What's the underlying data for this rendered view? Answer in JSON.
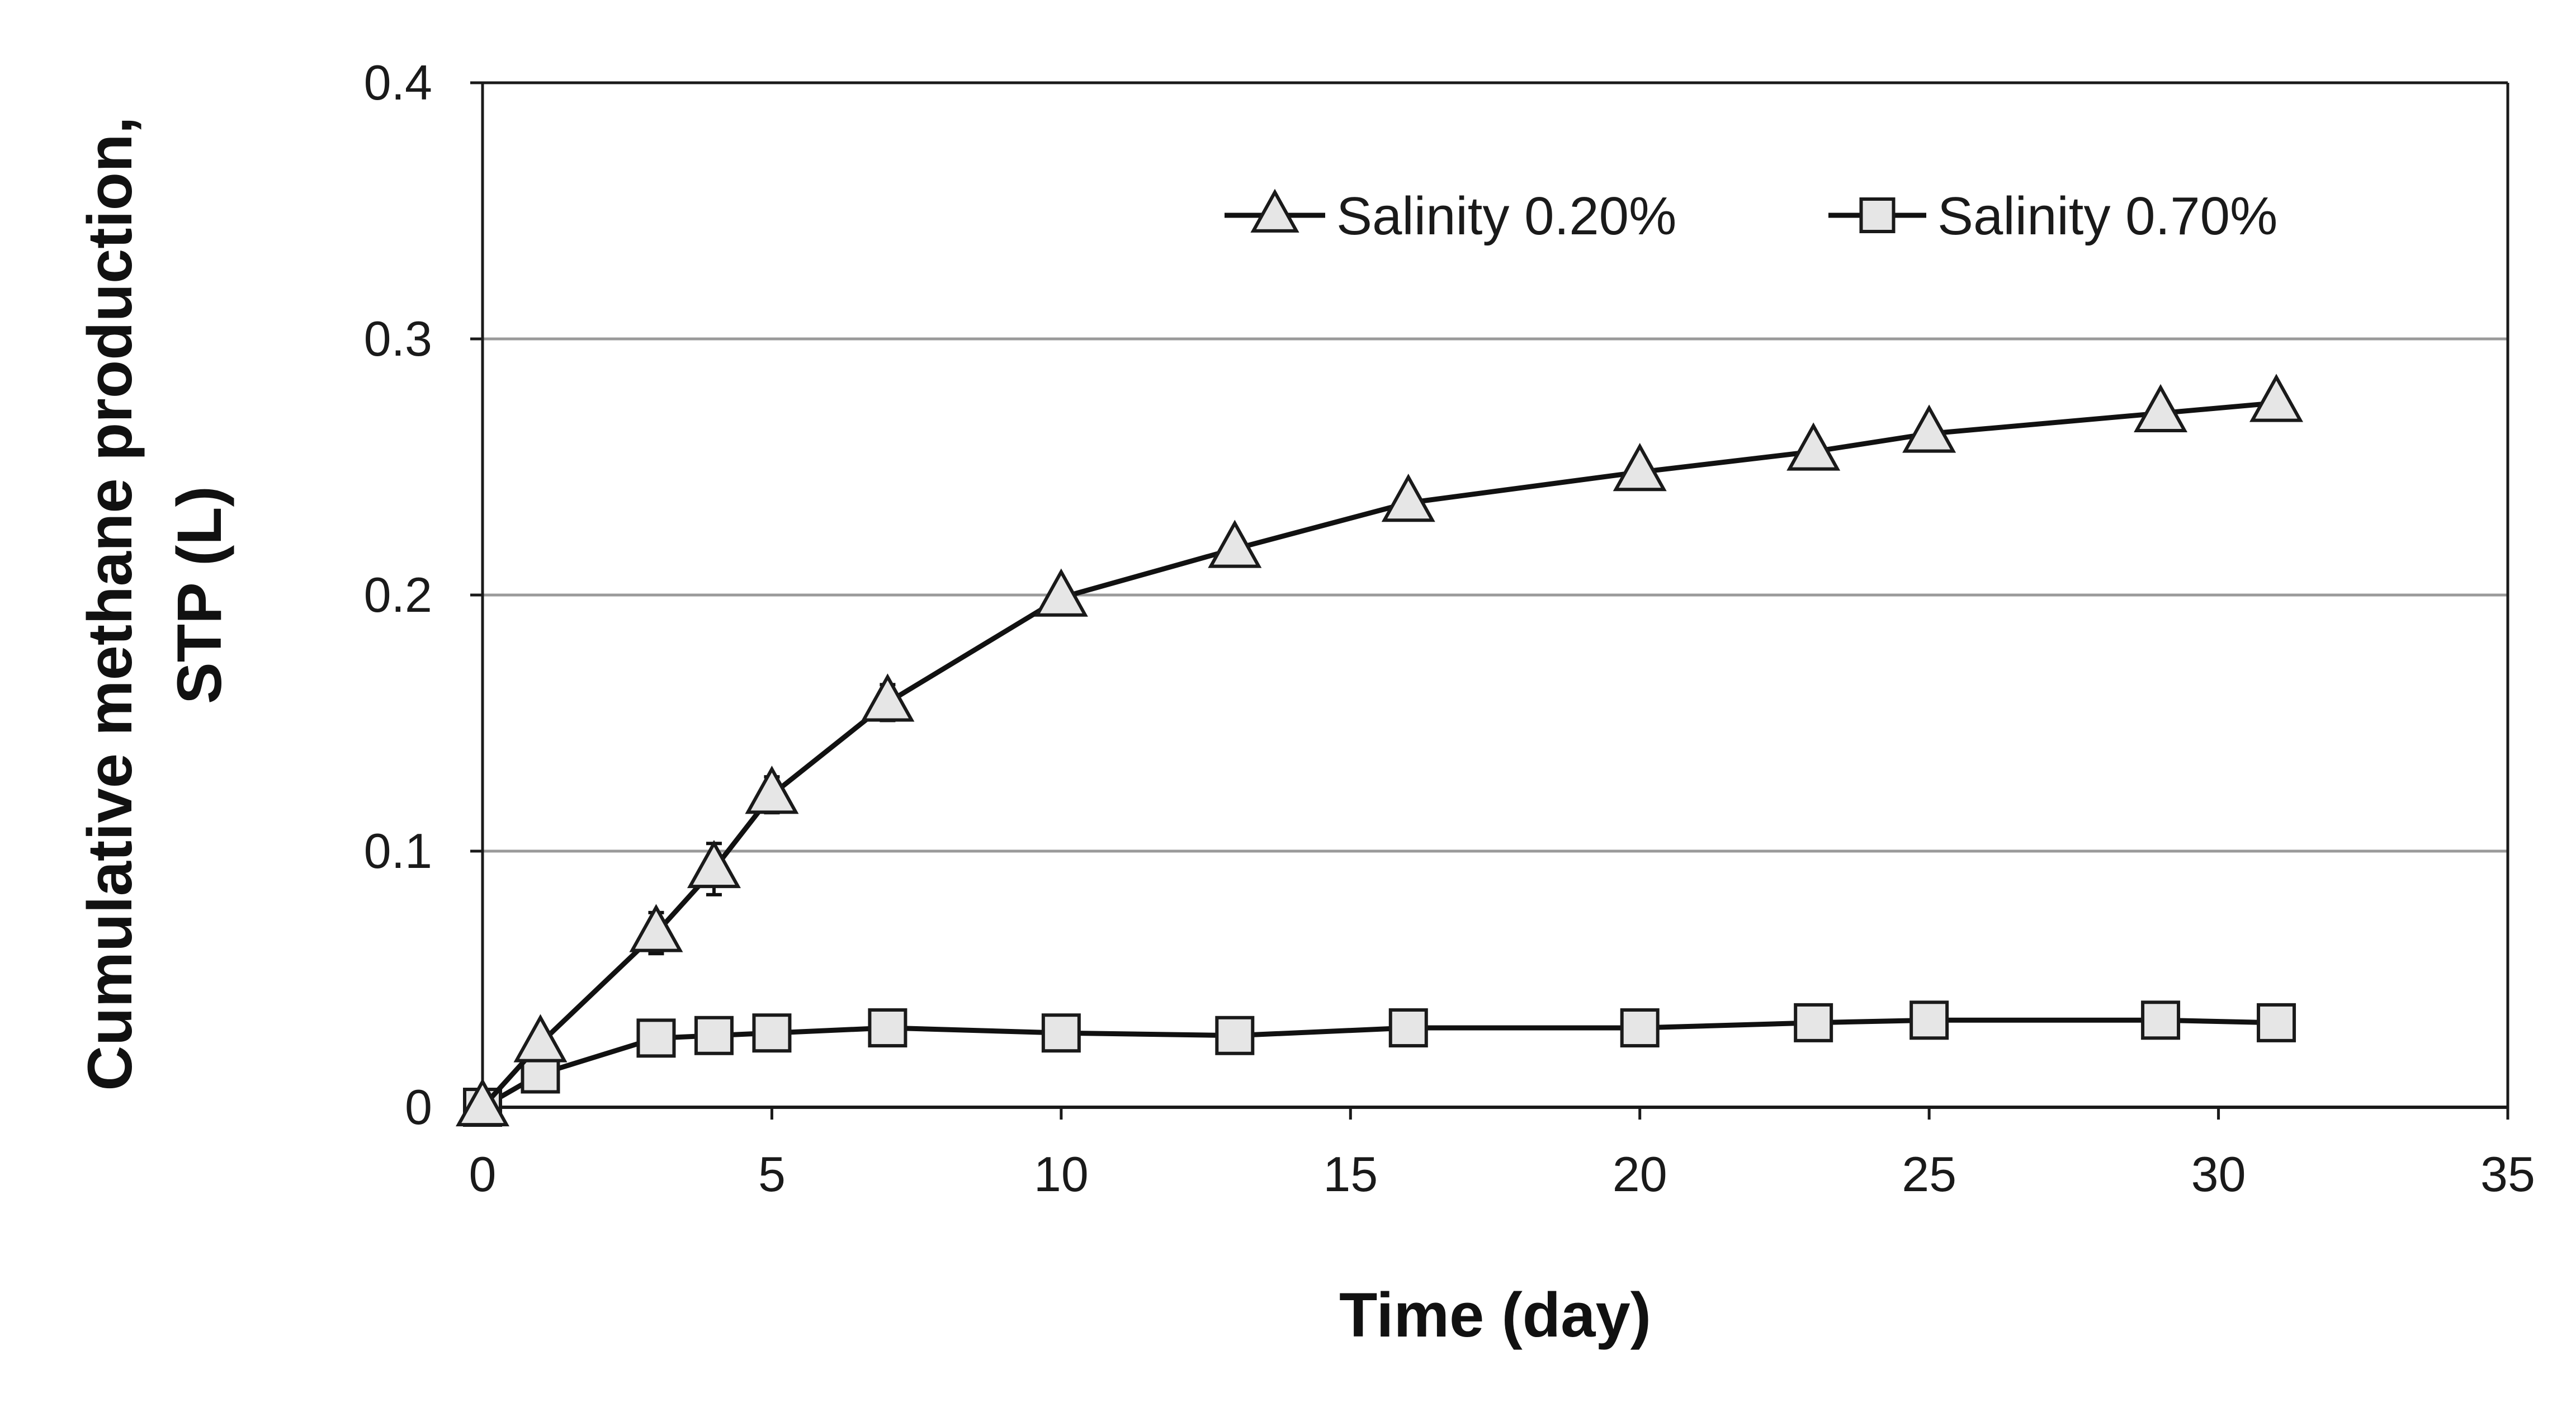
{
  "chart_data": {
    "type": "line",
    "title": "",
    "xlabel": "Time (day)",
    "ylabel_lines": [
      "Cumulative methane production,",
      "STP (L)"
    ],
    "xlim": [
      0,
      35
    ],
    "ylim": [
      0,
      0.4
    ],
    "xticks": [
      0,
      5,
      10,
      15,
      20,
      25,
      30,
      35
    ],
    "xtick_labels": [
      "0",
      "5",
      "10",
      "15",
      "20",
      "25",
      "30",
      "35"
    ],
    "yticks": [
      0,
      0.1,
      0.2,
      0.3,
      0.4
    ],
    "ytick_labels": [
      "0",
      "0.1",
      "0.2",
      "0.3",
      "0.4"
    ],
    "grid": "horizontal",
    "legend_position": "top-right",
    "series": [
      {
        "name": "Salinity 0.20%",
        "marker": "triangle",
        "x": [
          0,
          1,
          3,
          4,
          5,
          7,
          10,
          13,
          16,
          20,
          23,
          25,
          29,
          31
        ],
        "values": [
          0,
          0.025,
          0.068,
          0.093,
          0.122,
          0.158,
          0.199,
          0.218,
          0.236,
          0.248,
          0.256,
          0.263,
          0.271,
          0.275
        ],
        "error": [
          0,
          0.003,
          0.008,
          0.01,
          0.007,
          0.007,
          0.005,
          0.004,
          0.004,
          0.004,
          0.004,
          0.004,
          0.005,
          0.004
        ]
      },
      {
        "name": "Salinity 0.70%",
        "marker": "square",
        "x": [
          0,
          1,
          3,
          4,
          5,
          7,
          10,
          13,
          16,
          20,
          23,
          25,
          29,
          31
        ],
        "values": [
          0,
          0.013,
          0.027,
          0.028,
          0.029,
          0.031,
          0.029,
          0.028,
          0.031,
          0.031,
          0.033,
          0.034,
          0.034,
          0.033
        ],
        "error": [
          0,
          0.002,
          0.003,
          0.003,
          0.004,
          0.003,
          0.004,
          0.004,
          0.004,
          0.004,
          0.003,
          0.004,
          0.004,
          0.003
        ]
      }
    ]
  }
}
